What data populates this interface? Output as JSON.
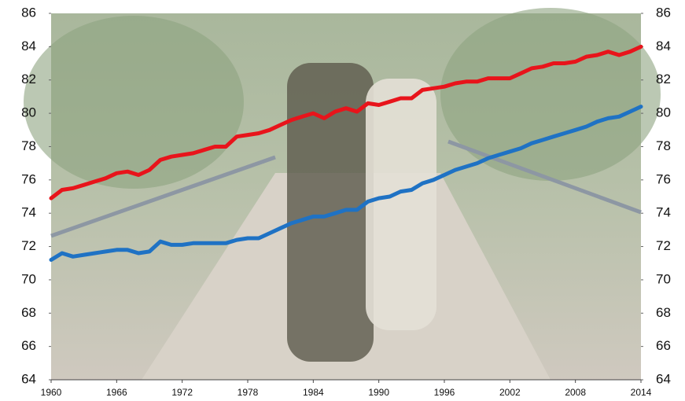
{
  "chart_data": {
    "type": "line",
    "x": [
      1960,
      1961,
      1962,
      1963,
      1964,
      1965,
      1966,
      1967,
      1968,
      1969,
      1970,
      1971,
      1972,
      1973,
      1974,
      1975,
      1976,
      1977,
      1978,
      1979,
      1980,
      1981,
      1982,
      1983,
      1984,
      1985,
      1986,
      1987,
      1988,
      1989,
      1990,
      1991,
      1992,
      1993,
      1994,
      1995,
      1996,
      1997,
      1998,
      1999,
      2000,
      2001,
      2002,
      2003,
      2004,
      2005,
      2006,
      2007,
      2008,
      2009,
      2010,
      2011,
      2012,
      2013,
      2014
    ],
    "series": [
      {
        "color": "#e8141b",
        "values": [
          74.9,
          75.4,
          75.5,
          75.7,
          75.9,
          76.1,
          76.4,
          76.5,
          76.3,
          76.6,
          77.2,
          77.4,
          77.5,
          77.6,
          77.8,
          78.0,
          78.0,
          78.6,
          78.7,
          78.8,
          79.0,
          79.3,
          79.6,
          79.8,
          80.0,
          79.7,
          80.1,
          80.3,
          80.1,
          80.6,
          80.5,
          80.7,
          80.9,
          80.9,
          81.4,
          81.5,
          81.6,
          81.8,
          81.9,
          81.9,
          82.1,
          82.1,
          82.1,
          82.4,
          82.7,
          82.8,
          83.0,
          83.0,
          83.1,
          83.4,
          83.5,
          83.7,
          83.5,
          83.7,
          84.0
        ]
      },
      {
        "color": "#1f72c4",
        "values": [
          71.2,
          71.6,
          71.4,
          71.5,
          71.6,
          71.7,
          71.8,
          71.8,
          71.6,
          71.7,
          72.3,
          72.1,
          72.1,
          72.2,
          72.2,
          72.2,
          72.2,
          72.4,
          72.5,
          72.5,
          72.8,
          73.1,
          73.4,
          73.6,
          73.8,
          73.8,
          74.0,
          74.2,
          74.2,
          74.7,
          74.9,
          75.0,
          75.3,
          75.4,
          75.8,
          76.0,
          76.3,
          76.6,
          76.8,
          77.0,
          77.3,
          77.5,
          77.7,
          77.9,
          78.2,
          78.4,
          78.6,
          78.8,
          79.0,
          79.2,
          79.5,
          79.7,
          79.8,
          80.1,
          80.4
        ]
      }
    ],
    "xlim": [
      1960,
      2014
    ],
    "xticks": [
      1960,
      1966,
      1972,
      1978,
      1984,
      1990,
      1996,
      2002,
      2008,
      2014
    ],
    "ylim": [
      64,
      86
    ],
    "yticks": [
      64,
      66,
      68,
      70,
      72,
      74,
      76,
      78,
      80,
      82,
      84,
      86
    ],
    "y2lim": [
      64,
      86
    ],
    "y2ticks": [
      64,
      66,
      68,
      70,
      72,
      74,
      76,
      78,
      80,
      82,
      84,
      86
    ]
  }
}
